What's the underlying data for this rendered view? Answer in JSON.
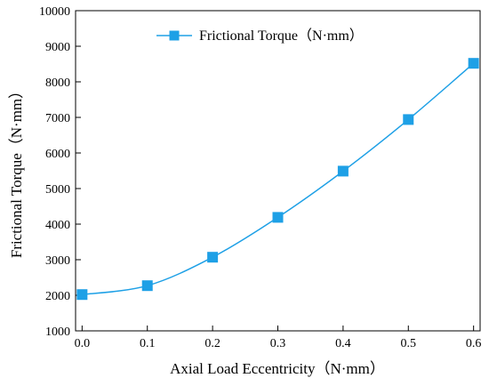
{
  "chart_data": {
    "type": "line",
    "title": "",
    "xlabel": "Axial Load Eccentricity（N·mm）",
    "ylabel": "Frictional Torque（N·mm）",
    "xlim": [
      -0.01,
      0.61
    ],
    "ylim": [
      1000,
      10000
    ],
    "xticks": [
      0.0,
      0.1,
      0.2,
      0.3,
      0.4,
      0.5,
      0.6
    ],
    "xtick_labels": [
      "0.0",
      "0.1",
      "0.2",
      "0.3",
      "0.4",
      "0.5",
      "0.6"
    ],
    "yticks": [
      1000,
      2000,
      3000,
      4000,
      5000,
      6000,
      7000,
      8000,
      9000,
      10000
    ],
    "ytick_labels": [
      "1000",
      "2000",
      "3000",
      "4000",
      "5000",
      "6000",
      "7000",
      "8000",
      "9000",
      "10000"
    ],
    "grid": false,
    "legend_position": "top-center",
    "series": [
      {
        "name": "Frictional Torque（N·mm）",
        "color": "#1ea0e6",
        "marker": "square",
        "x": [
          0.0,
          0.1,
          0.2,
          0.3,
          0.4,
          0.5,
          0.6
        ],
        "y": [
          2020,
          2270,
          3070,
          4190,
          5490,
          6940,
          8520
        ]
      }
    ]
  }
}
